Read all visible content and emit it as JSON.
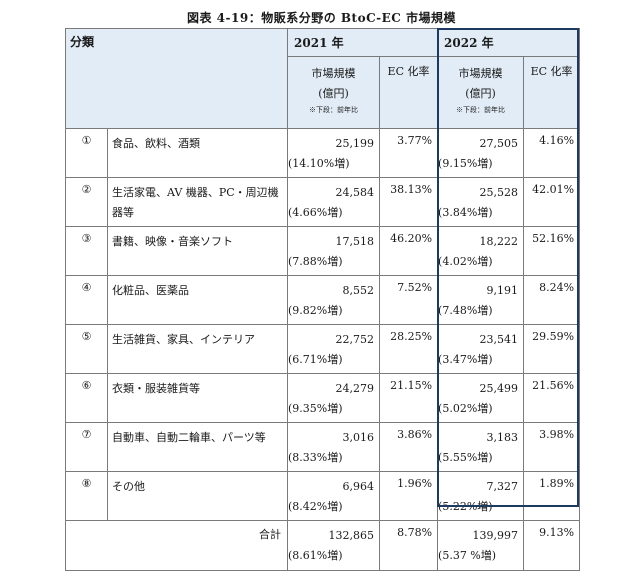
{
  "title": "図表 4-19：物販系分野の BtoC-EC 市場規模",
  "header": {
    "category": "分類",
    "year2021": "2021 年",
    "year2022": "2022 年",
    "market_size": "市場規模",
    "unit": "(億円)",
    "note": "※下段：前年比",
    "ec_rate": "EC 化率"
  },
  "rows": [
    {
      "idx": "①",
      "name": "食品、飲料、酒類",
      "v2021": "25,199",
      "g2021": "(14.10%増)",
      "r2021": "3.77%",
      "v2022": "27,505",
      "g2022": "(9.15%増)",
      "r2022": "4.16%"
    },
    {
      "idx": "②",
      "name": "生活家電、AV 機器、PC・周辺機器等",
      "v2021": "24,584",
      "g2021": "(4.66%増)",
      "r2021": "38.13%",
      "v2022": "25,528",
      "g2022": "(3.84%増)",
      "r2022": "42.01%"
    },
    {
      "idx": "③",
      "name": "書籍、映像・音楽ソフト",
      "v2021": "17,518",
      "g2021": "(7.88%増)",
      "r2021": "46.20%",
      "v2022": "18,222",
      "g2022": "(4.02%増)",
      "r2022": "52.16%"
    },
    {
      "idx": "④",
      "name": "化粧品、医薬品",
      "v2021": "8,552",
      "g2021": "(9.82%増)",
      "r2021": "7.52%",
      "v2022": "9,191",
      "g2022": "(7.48%増)",
      "r2022": "8.24%"
    },
    {
      "idx": "⑤",
      "name": "生活雑貨、家具、インテリア",
      "v2021": "22,752",
      "g2021": "(6.71%増)",
      "r2021": "28.25%",
      "v2022": "23,541",
      "g2022": "(3.47%増)",
      "r2022": "29.59%"
    },
    {
      "idx": "⑥",
      "name": "衣類・服装雑貨等",
      "v2021": "24,279",
      "g2021": "(9.35%増)",
      "r2021": "21.15%",
      "v2022": "25,499",
      "g2022": "(5.02%増)",
      "r2022": "21.56%"
    },
    {
      "idx": "⑦",
      "name": "自動車、自動二輪車、パーツ等",
      "v2021": "3,016",
      "g2021": "(8.33%増)",
      "r2021": "3.86%",
      "v2022": "3,183",
      "g2022": "(5.55%増)",
      "r2022": "3.98%"
    },
    {
      "idx": "⑧",
      "name": "その他",
      "v2021": "6,964",
      "g2021": "(8.42%増)",
      "r2021": "1.96%",
      "v2022": "7,327",
      "g2022": "(5.22%増)",
      "r2022": "1.89%"
    }
  ],
  "total": {
    "label": "合計",
    "v2021": "132,865",
    "g2021": "(8.61%増)",
    "r2021": "8.78%",
    "v2022": "139,997",
    "g2022": "(5.37 %増)",
    "r2022": "9.13%"
  },
  "colors": {
    "header_bg": "#e2ecf6",
    "highlight_border": "#1f3a5f"
  }
}
